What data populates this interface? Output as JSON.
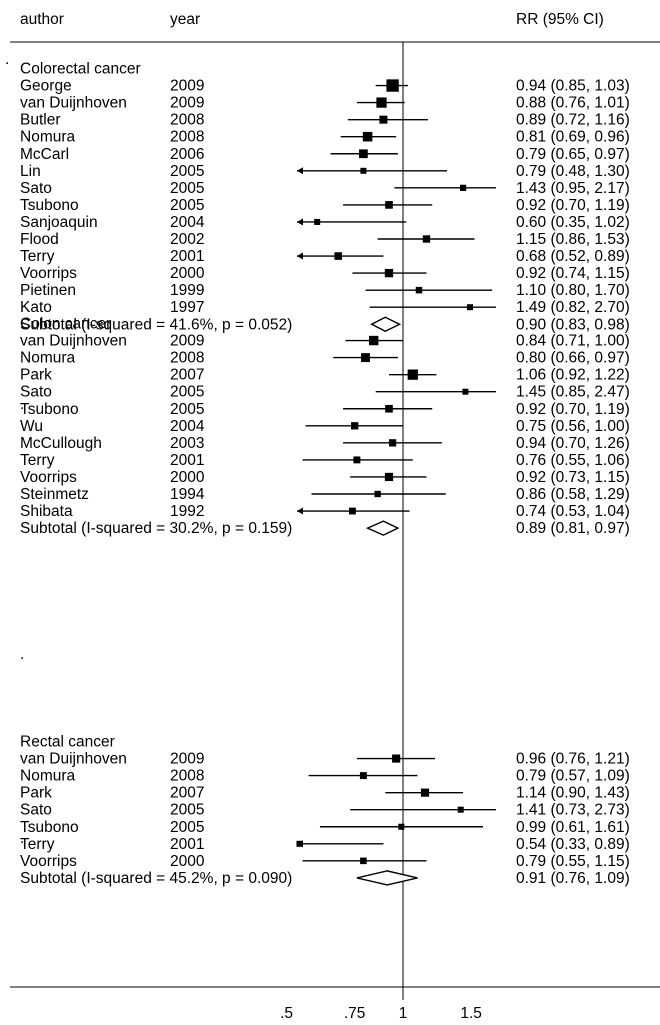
{
  "chart_data": {
    "type": "forest",
    "header": {
      "author": "author",
      "year": "year",
      "estimate": "RR (95% CI)"
    },
    "x_axis": {
      "scale": "log",
      "ticks": [
        ".5",
        ".75",
        "1",
        "1.5"
      ],
      "tick_values": [
        0.5,
        0.75,
        1,
        1.5
      ],
      "null_line": 1
    },
    "stray_marks": [
      "."
    ],
    "groups": [
      {
        "title": "Colorectal cancer",
        "studies": [
          {
            "author": "George",
            "year": "2009",
            "rr": 0.94,
            "lo": 0.85,
            "hi": 1.03,
            "label": "0.94 (0.85, 1.03)"
          },
          {
            "author": "van Duijnhoven",
            "year": "2009",
            "rr": 0.88,
            "lo": 0.76,
            "hi": 1.01,
            "label": "0.88 (0.76, 1.01)"
          },
          {
            "author": "Butler",
            "year": "2008",
            "rr": 0.89,
            "lo": 0.72,
            "hi": 1.16,
            "label": "0.89 (0.72, 1.16)"
          },
          {
            "author": "Nomura",
            "year": "2008",
            "rr": 0.81,
            "lo": 0.69,
            "hi": 0.96,
            "label": "0.81 (0.69, 0.96)"
          },
          {
            "author": "McCarl",
            "year": "2006",
            "rr": 0.79,
            "lo": 0.65,
            "hi": 0.97,
            "label": "0.79 (0.65, 0.97)"
          },
          {
            "author": "Lin",
            "year": "2005",
            "rr": 0.79,
            "lo": 0.48,
            "hi": 1.3,
            "label": "0.79 (0.48, 1.30)"
          },
          {
            "author": "Sato",
            "year": "2005",
            "rr": 1.43,
            "lo": 0.95,
            "hi": 2.17,
            "label": "1.43 (0.95, 2.17)"
          },
          {
            "author": "Tsubono",
            "year": "2005",
            "rr": 0.92,
            "lo": 0.7,
            "hi": 1.19,
            "label": "0.92 (0.70, 1.19)"
          },
          {
            "author": "Sanjoaquin",
            "year": "2004",
            "rr": 0.6,
            "lo": 0.35,
            "hi": 1.02,
            "label": "0.60 (0.35, 1.02)"
          },
          {
            "author": "Flood",
            "year": "2002",
            "rr": 1.15,
            "lo": 0.86,
            "hi": 1.53,
            "label": "1.15 (0.86, 1.53)"
          },
          {
            "author": "Terry",
            "year": "2001",
            "rr": 0.68,
            "lo": 0.52,
            "hi": 0.89,
            "label": "0.68 (0.52, 0.89)"
          },
          {
            "author": "Voorrips",
            "year": "2000",
            "rr": 0.92,
            "lo": 0.74,
            "hi": 1.15,
            "label": "0.92 (0.74, 1.15)"
          },
          {
            "author": "Pietinen",
            "year": "1999",
            "rr": 1.1,
            "lo": 0.8,
            "hi": 1.7,
            "label": "1.10 (0.80, 1.70)"
          },
          {
            "author": "Kato",
            "year": "1997",
            "rr": 1.49,
            "lo": 0.82,
            "hi": 2.7,
            "label": "1.49 (0.82, 2.70)"
          }
        ],
        "subtotal": {
          "text": "Subtotal  (I-squared = 41.6%, p = 0.052)",
          "rr": 0.9,
          "lo": 0.83,
          "hi": 0.98,
          "label": "0.90 (0.83, 0.98)"
        }
      },
      {
        "title": "Colon cancer",
        "studies": [
          {
            "author": "van Duijnhoven",
            "year": "2009",
            "rr": 0.84,
            "lo": 0.71,
            "hi": 1.0,
            "label": "0.84 (0.71, 1.00)"
          },
          {
            "author": "Nomura",
            "year": "2008",
            "rr": 0.8,
            "lo": 0.66,
            "hi": 0.97,
            "label": "0.80 (0.66, 0.97)"
          },
          {
            "author": "Park",
            "year": "2007",
            "rr": 1.06,
            "lo": 0.92,
            "hi": 1.22,
            "label": "1.06 (0.92, 1.22)"
          },
          {
            "author": "Sato",
            "year": "2005",
            "rr": 1.45,
            "lo": 0.85,
            "hi": 2.47,
            "label": "1.45 (0.85, 2.47)"
          },
          {
            "author": "Tsubono",
            "year": "2005",
            "rr": 0.92,
            "lo": 0.7,
            "hi": 1.19,
            "label": "0.92 (0.70, 1.19)"
          },
          {
            "author": "Wu",
            "year": "2004",
            "rr": 0.75,
            "lo": 0.56,
            "hi": 1.0,
            "label": "0.75 (0.56, 1.00)"
          },
          {
            "author": "McCullough",
            "year": "2003",
            "rr": 0.94,
            "lo": 0.7,
            "hi": 1.26,
            "label": "0.94 (0.70, 1.26)"
          },
          {
            "author": "Terry",
            "year": "2001",
            "rr": 0.76,
            "lo": 0.55,
            "hi": 1.06,
            "label": "0.76 (0.55, 1.06)"
          },
          {
            "author": "Voorrips",
            "year": "2000",
            "rr": 0.92,
            "lo": 0.73,
            "hi": 1.15,
            "label": "0.92 (0.73, 1.15)"
          },
          {
            "author": "Steinmetz",
            "year": "1994",
            "rr": 0.86,
            "lo": 0.58,
            "hi": 1.29,
            "label": "0.86 (0.58, 1.29)"
          },
          {
            "author": "Shibata",
            "year": "1992",
            "rr": 0.74,
            "lo": 0.53,
            "hi": 1.04,
            "label": "0.74 (0.53, 1.04)"
          }
        ],
        "subtotal": {
          "text": "Subtotal  (I-squared = 30.2%, p = 0.159)",
          "rr": 0.89,
          "lo": 0.81,
          "hi": 0.97,
          "label": "0.89 (0.81, 0.97)"
        }
      },
      {
        "title": "Rectal cancer",
        "studies": [
          {
            "author": "van Duijnhoven",
            "year": "2009",
            "rr": 0.96,
            "lo": 0.76,
            "hi": 1.21,
            "label": "0.96 (0.76, 1.21)"
          },
          {
            "author": "Nomura",
            "year": "2008",
            "rr": 0.79,
            "lo": 0.57,
            "hi": 1.09,
            "label": "0.79 (0.57, 1.09)"
          },
          {
            "author": "Park",
            "year": "2007",
            "rr": 1.14,
            "lo": 0.9,
            "hi": 1.43,
            "label": "1.14 (0.90, 1.43)"
          },
          {
            "author": "Sato",
            "year": "2005",
            "rr": 1.41,
            "lo": 0.73,
            "hi": 2.73,
            "label": "1.41 (0.73, 2.73)"
          },
          {
            "author": "Tsubono",
            "year": "2005",
            "rr": 0.99,
            "lo": 0.61,
            "hi": 1.61,
            "label": "0.99 (0.61, 1.61)"
          },
          {
            "author": "Terry",
            "year": "2001",
            "rr": 0.54,
            "lo": 0.33,
            "hi": 0.89,
            "label": "0.54 (0.33, 0.89)"
          },
          {
            "author": "Voorrips",
            "year": "2000",
            "rr": 0.79,
            "lo": 0.55,
            "hi": 1.15,
            "label": "0.79 (0.55, 1.15)"
          }
        ],
        "subtotal": {
          "text": "Subtotal  (I-squared = 45.2%, p = 0.090)",
          "rr": 0.91,
          "lo": 0.76,
          "hi": 1.09,
          "label": "0.91 (0.76, 1.09)"
        }
      }
    ]
  }
}
